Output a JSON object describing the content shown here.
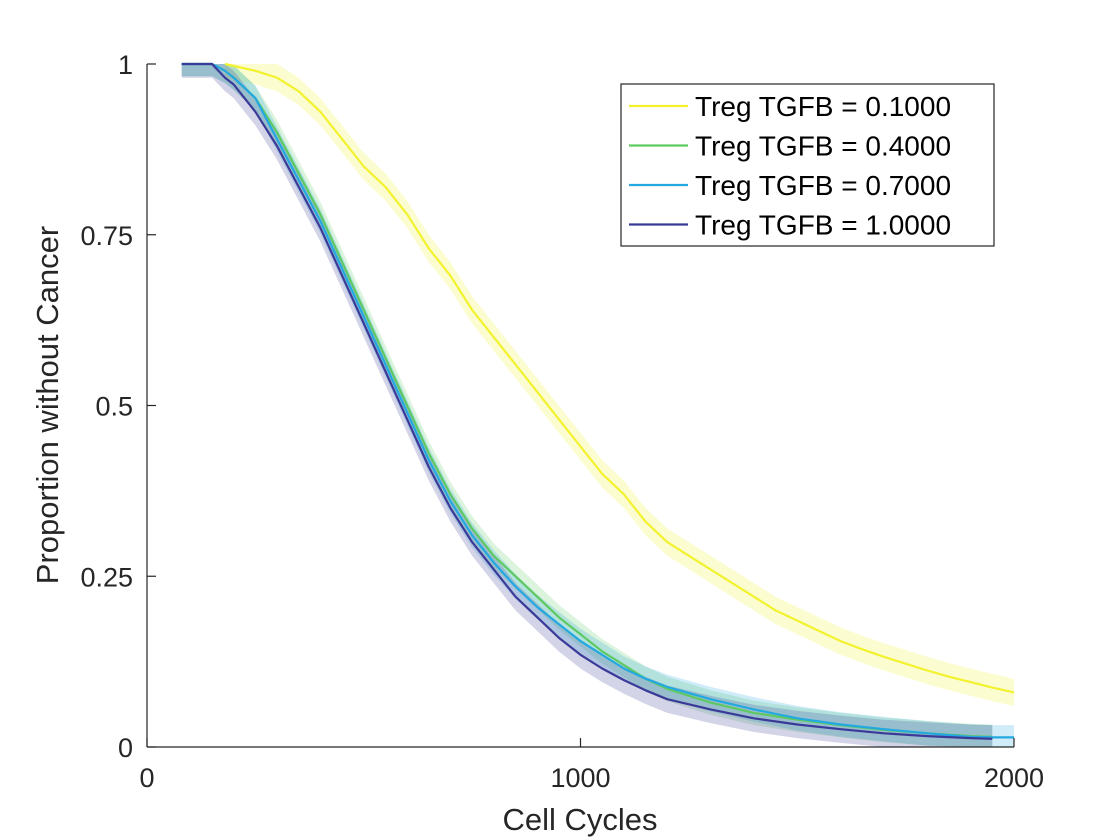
{
  "chart_data": {
    "type": "line",
    "title": "",
    "xlabel": "Cell Cycles",
    "ylabel": "Proportion without Cancer",
    "xlim": [
      0,
      2000
    ],
    "ylim": [
      0,
      1
    ],
    "xticks": [
      0,
      1000,
      2000
    ],
    "xtick_labels": [
      "0",
      "1000",
      "2000"
    ],
    "yticks": [
      0,
      0.25,
      0.5,
      0.75,
      1
    ],
    "ytick_labels": [
      "0",
      "0.25",
      "0.5",
      "0.75",
      "1"
    ],
    "grid": false,
    "legend_position": "top-right",
    "series": [
      {
        "name": "Treg TGFB = 0.1000",
        "color": "#f2f22e",
        "x": [
          180,
          250,
          300,
          350,
          400,
          450,
          500,
          550,
          600,
          650,
          700,
          750,
          800,
          850,
          900,
          950,
          1000,
          1050,
          1100,
          1150,
          1200,
          1250,
          1300,
          1350,
          1400,
          1450,
          1500,
          1550,
          1600,
          1650,
          1700,
          1750,
          1800,
          1850,
          1900,
          1950,
          2000
        ],
        "y": [
          1.0,
          0.99,
          0.98,
          0.96,
          0.93,
          0.89,
          0.85,
          0.82,
          0.78,
          0.73,
          0.69,
          0.64,
          0.6,
          0.56,
          0.52,
          0.48,
          0.44,
          0.4,
          0.37,
          0.33,
          0.3,
          0.28,
          0.26,
          0.24,
          0.22,
          0.2,
          0.185,
          0.17,
          0.155,
          0.143,
          0.132,
          0.122,
          0.112,
          0.103,
          0.095,
          0.087,
          0.08
        ],
        "band": 0.02
      },
      {
        "name": "Treg TGFB = 0.4000",
        "color": "#5ec962",
        "x": [
          80,
          120,
          150,
          180,
          200,
          250,
          300,
          350,
          400,
          450,
          500,
          550,
          600,
          650,
          700,
          750,
          800,
          850,
          900,
          950,
          1000,
          1050,
          1100,
          1150,
          1200,
          1300,
          1400,
          1500,
          1600,
          1700,
          1800,
          1900,
          1950
        ],
        "y": [
          1.0,
          1.0,
          1.0,
          0.99,
          0.98,
          0.95,
          0.9,
          0.84,
          0.78,
          0.71,
          0.64,
          0.57,
          0.5,
          0.43,
          0.37,
          0.32,
          0.28,
          0.25,
          0.22,
          0.19,
          0.165,
          0.14,
          0.12,
          0.1,
          0.085,
          0.065,
          0.05,
          0.04,
          0.032,
          0.025,
          0.02,
          0.016,
          0.015
        ],
        "band": 0.018
      },
      {
        "name": "Treg TGFB = 0.7000",
        "color": "#23a8e0",
        "x": [
          80,
          120,
          150,
          180,
          200,
          250,
          300,
          350,
          400,
          450,
          500,
          550,
          600,
          650,
          700,
          750,
          800,
          850,
          900,
          950,
          1000,
          1050,
          1100,
          1150,
          1200,
          1300,
          1400,
          1500,
          1600,
          1700,
          1800,
          1900,
          1950,
          2000
        ],
        "y": [
          1.0,
          1.0,
          1.0,
          0.99,
          0.98,
          0.95,
          0.89,
          0.83,
          0.77,
          0.7,
          0.63,
          0.56,
          0.49,
          0.42,
          0.36,
          0.31,
          0.27,
          0.235,
          0.205,
          0.18,
          0.155,
          0.135,
          0.115,
          0.1,
          0.088,
          0.07,
          0.055,
          0.042,
          0.033,
          0.026,
          0.02,
          0.015,
          0.014,
          0.014
        ],
        "band": 0.018
      },
      {
        "name": "Treg TGFB = 1.0000",
        "color": "#3b3a98",
        "x": [
          80,
          120,
          150,
          180,
          200,
          250,
          300,
          350,
          400,
          450,
          500,
          550,
          600,
          650,
          700,
          750,
          800,
          850,
          900,
          950,
          1000,
          1050,
          1100,
          1150,
          1200,
          1300,
          1400,
          1500,
          1600,
          1700,
          1800,
          1900,
          1950
        ],
        "y": [
          1.0,
          1.0,
          1.0,
          0.98,
          0.97,
          0.93,
          0.88,
          0.82,
          0.76,
          0.69,
          0.62,
          0.55,
          0.48,
          0.41,
          0.35,
          0.3,
          0.26,
          0.22,
          0.19,
          0.16,
          0.135,
          0.115,
          0.098,
          0.083,
          0.07,
          0.055,
          0.042,
          0.033,
          0.026,
          0.02,
          0.016,
          0.013,
          0.012
        ],
        "band": 0.02
      }
    ]
  }
}
